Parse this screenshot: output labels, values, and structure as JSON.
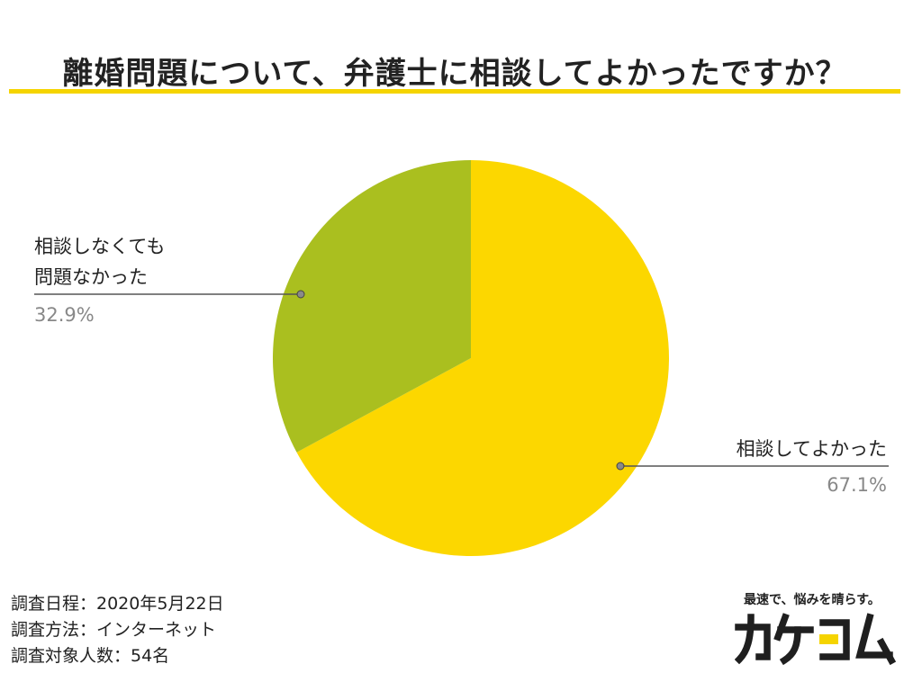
{
  "title": "離婚問題について、弁護士に相談してよかったですか？",
  "colors": {
    "accent": "#f5d400",
    "slice_good": "#fcd700",
    "slice_nochange": "#aabf1f",
    "leader": "#555555",
    "percent_text": "#888888"
  },
  "chart_data": {
    "type": "pie",
    "title": "離婚問題について、弁護士に相談してよかったですか？",
    "start_angle_deg": 0,
    "direction": "clockwise",
    "slices": [
      {
        "label": "相談してよかった",
        "value": 67.1,
        "percent": "67.1%",
        "color": "#fcd700"
      },
      {
        "label_lines": [
          "相談しなくても",
          "問題なかった"
        ],
        "value": 32.9,
        "percent": "32.9%",
        "color": "#aabf1f"
      }
    ]
  },
  "survey": {
    "date": "調査日程：2020年5月22日",
    "method": "調査方法：インターネット",
    "target": "調査対象人数：54名"
  },
  "brand": {
    "tagline": "最速で、悩みを晴らす。",
    "logo_text": "カケコム",
    "logo_accent_color": "#f5d400"
  }
}
